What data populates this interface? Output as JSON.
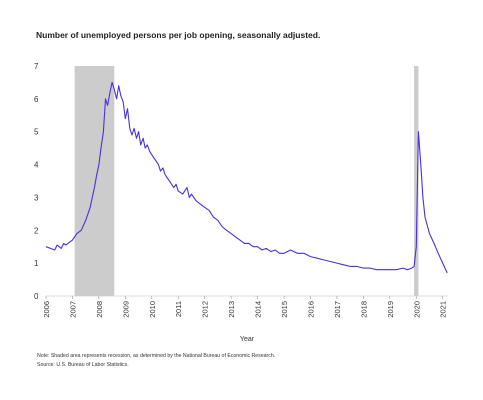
{
  "chart_data": {
    "type": "line",
    "title": "Number of unemployed persons per job opening, seasonally adjusted.",
    "xlabel": "Year",
    "ylabel": "",
    "xlim": [
      2006,
      2021.2
    ],
    "ylim": [
      0,
      7
    ],
    "y_ticks": [
      0,
      1,
      2,
      3,
      4,
      5,
      6,
      7
    ],
    "x_tick_labels": [
      "2006",
      "2007",
      "2008",
      "2009",
      "2010",
      "2011",
      "2012",
      "2013",
      "2014",
      "2015",
      "2016",
      "2017",
      "2018",
      "2019",
      "2020",
      "2021"
    ],
    "x_tick_values": [
      2006,
      2007,
      2008,
      2009,
      2010,
      2011,
      2012,
      2013,
      2014,
      2015,
      2016,
      2017,
      2018,
      2019,
      2020,
      2021
    ],
    "grid": false,
    "line_color": "#4b2fe0",
    "recession_color": "#cccccc",
    "recessions": [
      {
        "start": 2007.083,
        "end": 2008.583
      },
      {
        "start": 2019.917,
        "end": 2020.083
      }
    ],
    "series": [
      {
        "x": [
          2006.0,
          2006.33,
          2006.42,
          2006.58,
          2006.67,
          2006.75,
          2006.83,
          2007.0,
          2007.17,
          2007.33,
          2007.5,
          2007.67,
          2007.83,
          2007.92,
          2008.0,
          2008.08,
          2008.17,
          2008.25,
          2008.33,
          2008.42,
          2008.5,
          2008.58,
          2008.67,
          2008.75,
          2008.83,
          2008.92,
          2009.0,
          2009.08,
          2009.17,
          2009.25,
          2009.33,
          2009.42,
          2009.5,
          2009.58,
          2009.67,
          2009.75,
          2009.83,
          2009.92,
          2010.0,
          2010.08,
          2010.17,
          2010.25,
          2010.33,
          2010.42,
          2010.5,
          2010.58,
          2010.67,
          2010.75,
          2010.83,
          2010.92,
          2011.0,
          2011.17,
          2011.33,
          2011.42,
          2011.5,
          2011.67,
          2011.83,
          2012.0,
          2012.17,
          2012.33,
          2012.5,
          2012.67,
          2012.83,
          2013.0,
          2013.17,
          2013.33,
          2013.5,
          2013.67,
          2013.83,
          2014.0,
          2014.17,
          2014.33,
          2014.5,
          2014.67,
          2014.83,
          2015.0,
          2015.25,
          2015.5,
          2015.75,
          2016.0,
          2016.25,
          2016.5,
          2016.75,
          2017.0,
          2017.25,
          2017.5,
          2017.75,
          2018.0,
          2018.25,
          2018.5,
          2018.75,
          2019.0,
          2019.25,
          2019.5,
          2019.67,
          2019.83,
          2019.92,
          2020.0,
          2020.08,
          2020.17,
          2020.25,
          2020.33,
          2020.5,
          2020.67,
          2020.83,
          2021.0,
          2021.17
        ],
        "y": [
          1.5,
          1.4,
          1.55,
          1.45,
          1.6,
          1.55,
          1.6,
          1.7,
          1.9,
          2.0,
          2.3,
          2.7,
          3.3,
          3.7,
          4.0,
          4.5,
          5.0,
          6.0,
          5.8,
          6.2,
          6.5,
          6.3,
          6.0,
          6.4,
          6.1,
          5.9,
          5.4,
          5.7,
          5.1,
          4.9,
          5.1,
          4.8,
          5.0,
          4.6,
          4.8,
          4.5,
          4.6,
          4.4,
          4.3,
          4.2,
          4.1,
          4.0,
          3.8,
          3.9,
          3.7,
          3.6,
          3.5,
          3.4,
          3.3,
          3.4,
          3.2,
          3.1,
          3.3,
          3.0,
          3.1,
          2.9,
          2.8,
          2.7,
          2.6,
          2.4,
          2.3,
          2.1,
          2.0,
          1.9,
          1.8,
          1.7,
          1.6,
          1.6,
          1.5,
          1.5,
          1.4,
          1.45,
          1.35,
          1.4,
          1.3,
          1.3,
          1.4,
          1.3,
          1.3,
          1.2,
          1.15,
          1.1,
          1.05,
          1.0,
          0.95,
          0.9,
          0.9,
          0.85,
          0.85,
          0.8,
          0.8,
          0.8,
          0.8,
          0.85,
          0.8,
          0.85,
          0.9,
          1.5,
          5.0,
          4.0,
          3.0,
          2.4,
          1.9,
          1.6,
          1.3,
          1.0,
          0.7
        ]
      }
    ],
    "notes": [
      "Note: Shaded area represents recession, as determined by the National Bureau of Economic Research.",
      "Source: U.S. Bureau of Labor Statistics."
    ]
  }
}
